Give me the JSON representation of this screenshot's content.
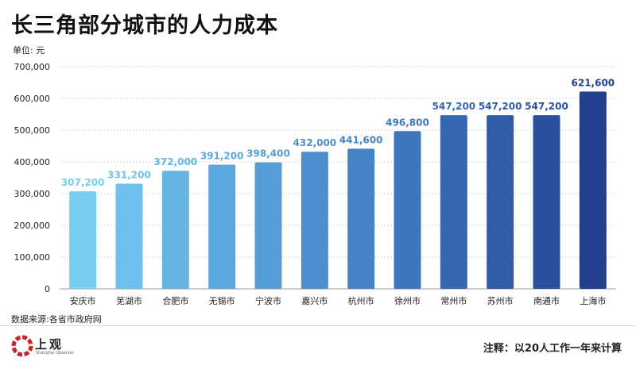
{
  "title": "长三角部分城市的人力成本",
  "unit_label": "单位: 元",
  "source": "数据来源:各省市政府网",
  "note": "注释：以20人工作一年来计算",
  "logo": {
    "text": "上观",
    "subtext": "Shanghai Observer",
    "icon": "shangguan-logo-icon"
  },
  "chart_data": {
    "type": "bar",
    "title": "长三角部分城市的人力成本",
    "ylabel": "单位: 元",
    "ylim": [
      0,
      700000
    ],
    "yticks": [
      "0",
      "100,000",
      "200,000",
      "300,000",
      "400,000",
      "500,000",
      "600,000",
      "700,000"
    ],
    "ytick_values": [
      0,
      100000,
      200000,
      300000,
      400000,
      500000,
      600000,
      700000
    ],
    "categories": [
      "安庆市",
      "芜湖市",
      "合肥市",
      "无锡市",
      "宁波市",
      "嘉兴市",
      "杭州市",
      "徐州市",
      "常州市",
      "苏州市",
      "南通市",
      "上海市"
    ],
    "values": [
      307200,
      331200,
      372000,
      391200,
      398400,
      432000,
      441600,
      496800,
      547200,
      547200,
      547200,
      621600
    ],
    "data_labels": [
      "307,200",
      "331,200",
      "372,000",
      "391,200",
      "398,400",
      "432,000",
      "441,600",
      "496,800",
      "547,200",
      "547,200",
      "547,200",
      "621,600"
    ],
    "colors": [
      "#79cdf0",
      "#6fc1eb",
      "#65b4e4",
      "#5ca8de",
      "#559dd6",
      "#4d8fcc",
      "#4683c4",
      "#3f76bb",
      "#3668b1",
      "#305ca7",
      "#2a4f9c",
      "#243f8d"
    ],
    "grid": true
  }
}
